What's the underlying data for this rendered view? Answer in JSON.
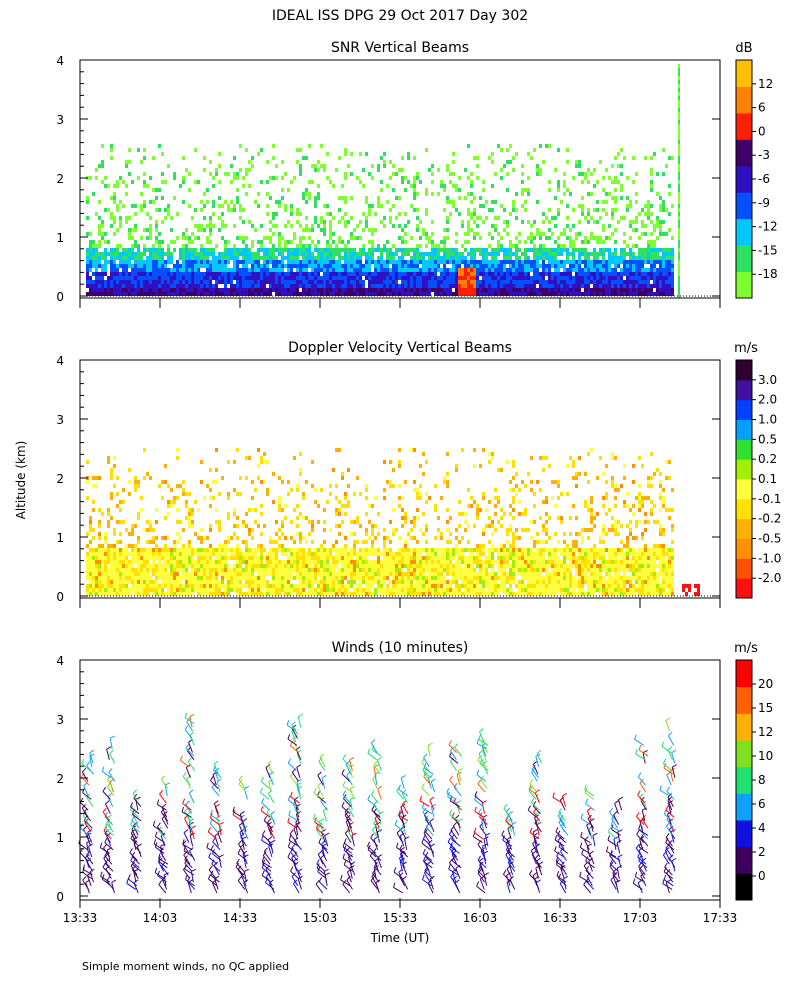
{
  "figure": {
    "title": "IDEAL ISS DPG  29 Oct 2017 Day 302",
    "ylabel": "Altitude (km)",
    "xlabel": "Time (UT)",
    "xticks": [
      "13:33",
      "14:03",
      "14:33",
      "15:03",
      "15:33",
      "16:03",
      "16:33",
      "17:03",
      "17:33"
    ],
    "yticks": [
      "0",
      "1",
      "2",
      "3",
      "4"
    ],
    "footnote": "Simple moment winds, no QC applied"
  },
  "chart_data": [
    {
      "type": "heatmap",
      "title": "SNR Vertical Beams",
      "xlabel": "Time (UT)",
      "ylabel": "Altitude (km)",
      "xlim": [
        "13:33",
        "17:33"
      ],
      "ylim": [
        0,
        4
      ],
      "colorbar": {
        "unit": "dB",
        "ticks": [
          "12",
          "6",
          "0",
          "-3",
          "-6",
          "-9",
          "-12",
          "-15",
          "-18"
        ],
        "colors": [
          "#80ff30",
          "#30e060",
          "#00c8ff",
          "#0050ff",
          "#3010c0",
          "#40006a",
          "#ff2000",
          "#ff8000",
          "#ffc000"
        ],
        "range": [
          -18,
          15
        ]
      },
      "data_extent": {
        "time_end": "17:15",
        "max_altitude_km": 2.6,
        "spike_altitude_km": 3.9
      }
    },
    {
      "type": "heatmap",
      "title": "Doppler Velocity Vertical Beams",
      "xlabel": "Time (UT)",
      "ylabel": "Altitude (km)",
      "xlim": [
        "13:33",
        "17:33"
      ],
      "ylim": [
        0,
        4
      ],
      "colorbar": {
        "unit": "m/s",
        "ticks": [
          "3.0",
          "2.0",
          "1.0",
          "0.5",
          "0.2",
          "0.1",
          "-0.1",
          "-0.2",
          "-0.5",
          "-1.0",
          "-2.0"
        ],
        "colors": [
          "#ff1010",
          "#ff5000",
          "#ff9000",
          "#ffb000",
          "#ffe000",
          "#ffff40",
          "#a0f000",
          "#30e030",
          "#00a0ff",
          "#0040ff",
          "#4010a0",
          "#300030"
        ]
      },
      "data_extent": {
        "time_end": "17:15",
        "max_altitude_km": 2.5
      }
    },
    {
      "type": "scatter",
      "title": "Winds (10 minutes)",
      "xlabel": "Time (UT)",
      "ylabel": "Altitude (km)",
      "xlim": [
        "13:33",
        "17:33"
      ],
      "ylim": [
        0,
        4
      ],
      "colorbar": {
        "unit": "m/s",
        "ticks": [
          "20",
          "15",
          "12",
          "10",
          "8",
          "6",
          "4",
          "2",
          "0"
        ],
        "colors": [
          "#000000",
          "#400060",
          "#1010e0",
          "#10a0ff",
          "#20e070",
          "#80e020",
          "#ffb000",
          "#ff6000",
          "#ff0000"
        ]
      },
      "profile_times": [
        "13:37",
        "13:45",
        "13:55",
        "14:05",
        "14:15",
        "14:25",
        "14:35",
        "14:45",
        "14:55",
        "15:05",
        "15:15",
        "15:25",
        "15:35",
        "15:45",
        "15:55",
        "16:05",
        "16:15",
        "16:25",
        "16:35",
        "16:45",
        "16:55",
        "17:05",
        "17:15"
      ],
      "max_altitude_km": 2.9
    }
  ]
}
